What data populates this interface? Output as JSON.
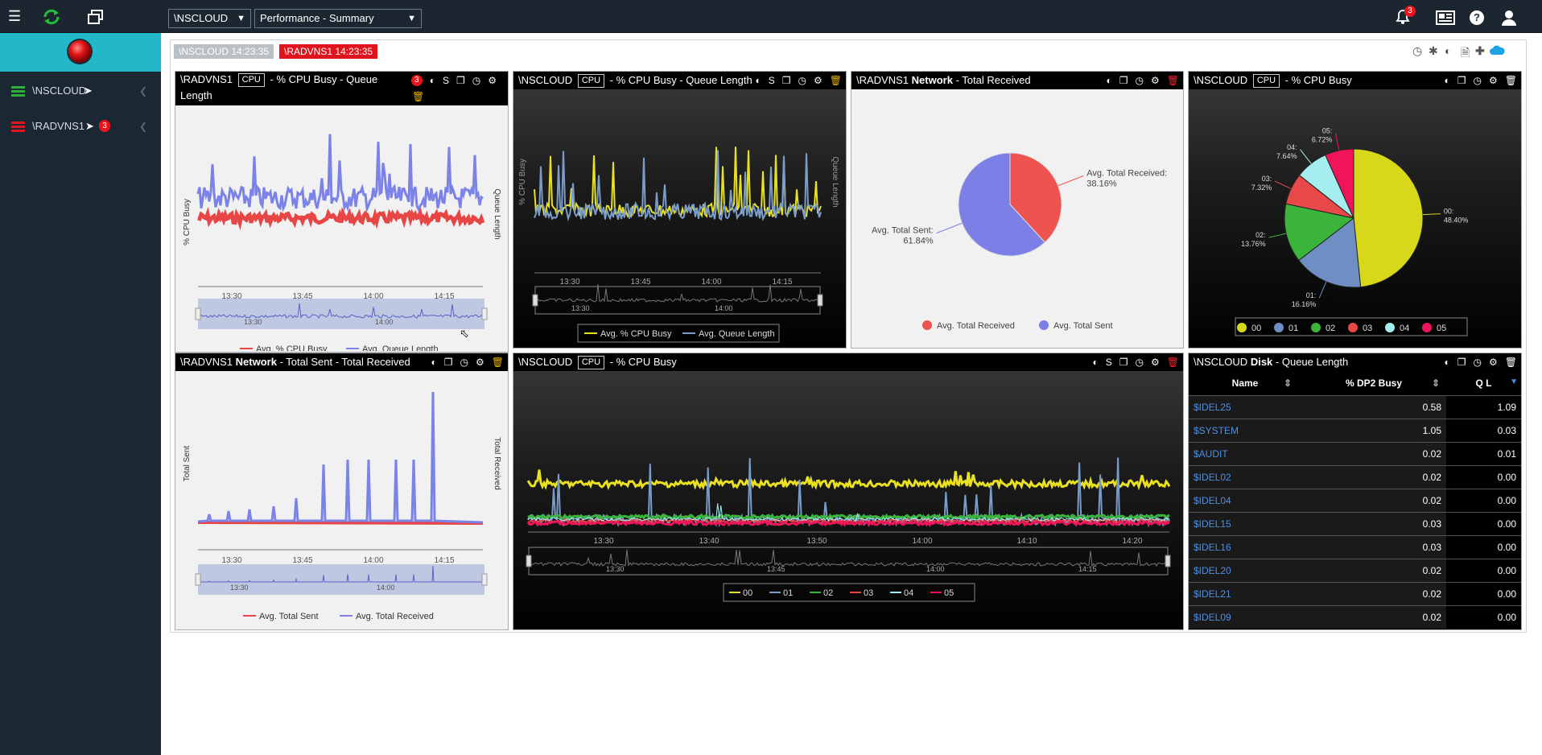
{
  "topbar": {
    "system_select": "\\NSCLOUD",
    "view_select": "Performance - Summary",
    "notifications_count": "3"
  },
  "sidebar": {
    "items": [
      {
        "label": "\\NSCLOUD",
        "badge": "",
        "color": "#2fae3c"
      },
      {
        "label": "\\RADVNS1",
        "badge": "3",
        "color": "#d8191f"
      }
    ]
  },
  "status_chips": [
    {
      "label": "\\NSCLOUD  14:23:35",
      "color": "#b9c1c7"
    },
    {
      "label": "\\RADVNS1  14:23:35",
      "color": "#e0141c"
    }
  ],
  "panels": {
    "p1": {
      "system": "\\RADVNS1",
      "tag": "CPU",
      "title": "- % CPU Busy - Queue Length",
      "badge": "3",
      "ylabel": "% CPU Busy",
      "ylabel2": "Queue Length",
      "ticks": [
        "13:30",
        "13:45",
        "14:00",
        "14:15"
      ],
      "nav_ticks": [
        "13:30",
        "14:00"
      ],
      "legend": [
        "Avg. % CPU Busy",
        "Avg. Queue Length"
      ]
    },
    "p2": {
      "system": "\\NSCLOUD",
      "tag": "CPU",
      "title": "- % CPU Busy - Queue Length",
      "ylabel": "% CPU Busy",
      "ylabel2": "Queue Length",
      "ticks": [
        "13:30",
        "13:45",
        "14:00",
        "14:15"
      ],
      "nav_ticks": [
        "13:30",
        "14:00"
      ],
      "legend": [
        "Avg. % CPU Busy",
        "Avg. Queue Length"
      ]
    },
    "p3": {
      "system": "\\RADVNS1",
      "strong": "Network",
      "title": "- Total Received",
      "legend": [
        "Avg. Total Received",
        "Avg. Total Sent"
      ]
    },
    "p4": {
      "system": "\\NSCLOUD",
      "tag": "CPU",
      "title": "- % CPU Busy",
      "legend": [
        "00",
        "01",
        "02",
        "03",
        "04",
        "05"
      ]
    },
    "p5": {
      "system": "\\RADVNS1",
      "strong": "Network",
      "title": "- Total Sent - Total Received",
      "ylabel": "Total Sent",
      "ylabel2": "Total Received",
      "ticks": [
        "13:30",
        "13:45",
        "14:00",
        "14:15"
      ],
      "nav_ticks": [
        "13:30",
        "14:00"
      ],
      "legend": [
        "Avg. Total Sent",
        "Avg. Total Received"
      ]
    },
    "p6": {
      "system": "\\NSCLOUD",
      "tag": "CPU",
      "title": "- % CPU Busy",
      "ticks": [
        "13:30",
        "13:40",
        "13:50",
        "14:00",
        "14:10",
        "14:20"
      ],
      "nav_ticks": [
        "13:30",
        "13:45",
        "14:00",
        "14:15"
      ],
      "legend": [
        "00",
        "01",
        "02",
        "03",
        "04",
        "05"
      ]
    },
    "p7": {
      "system": "\\NSCLOUD",
      "strong": "Disk",
      "title": "- Queue Length",
      "columns": [
        "Name",
        "% DP2 Busy",
        "Q L"
      ],
      "rows": [
        [
          "$IDEL25",
          "0.58",
          "1.09"
        ],
        [
          "$SYSTEM",
          "1.05",
          "0.03"
        ],
        [
          "$AUDIT",
          "0.02",
          "0.01"
        ],
        [
          "$IDEL02",
          "0.02",
          "0.00"
        ],
        [
          "$IDEL04",
          "0.02",
          "0.00"
        ],
        [
          "$IDEL15",
          "0.03",
          "0.00"
        ],
        [
          "$IDEL16",
          "0.03",
          "0.00"
        ],
        [
          "$IDEL20",
          "0.02",
          "0.00"
        ],
        [
          "$IDEL21",
          "0.02",
          "0.00"
        ],
        [
          "$IDEL09",
          "0.02",
          "0.00"
        ]
      ]
    }
  },
  "chart_data": [
    {
      "type": "pie",
      "title": "\\RADVNS1 Network - Total Received",
      "slices": [
        {
          "name": "Avg. Total Received",
          "label": "Avg. Total Received:",
          "pct_label": "38.16%",
          "value": 38.16,
          "color": "#ef5350"
        },
        {
          "name": "Avg. Total Sent",
          "label": "Avg. Total Sent:",
          "pct_label": "61.84%",
          "value": 61.84,
          "color": "#7b7fe6"
        }
      ]
    },
    {
      "type": "pie",
      "title": "\\NSCLOUD CPU - % CPU Busy",
      "slices": [
        {
          "name": "00",
          "label": "00:",
          "pct_label": "48.40%",
          "value": 48.4,
          "color": "#d8d81a"
        },
        {
          "name": "01",
          "label": "01:",
          "pct_label": "16.16%",
          "value": 16.16,
          "color": "#6f8fc4"
        },
        {
          "name": "02",
          "label": "02:",
          "pct_label": "13.76%",
          "value": 13.76,
          "color": "#3ab43a"
        },
        {
          "name": "03",
          "label": "03:",
          "pct_label": "7.32%",
          "value": 7.32,
          "color": "#e84848"
        },
        {
          "name": "04",
          "label": "04:",
          "pct_label": "7.64%",
          "value": 7.64,
          "color": "#a5eef0"
        },
        {
          "name": "05",
          "label": "05:",
          "pct_label": "6.72%",
          "value": 6.72,
          "color": "#f0145a"
        }
      ]
    }
  ]
}
